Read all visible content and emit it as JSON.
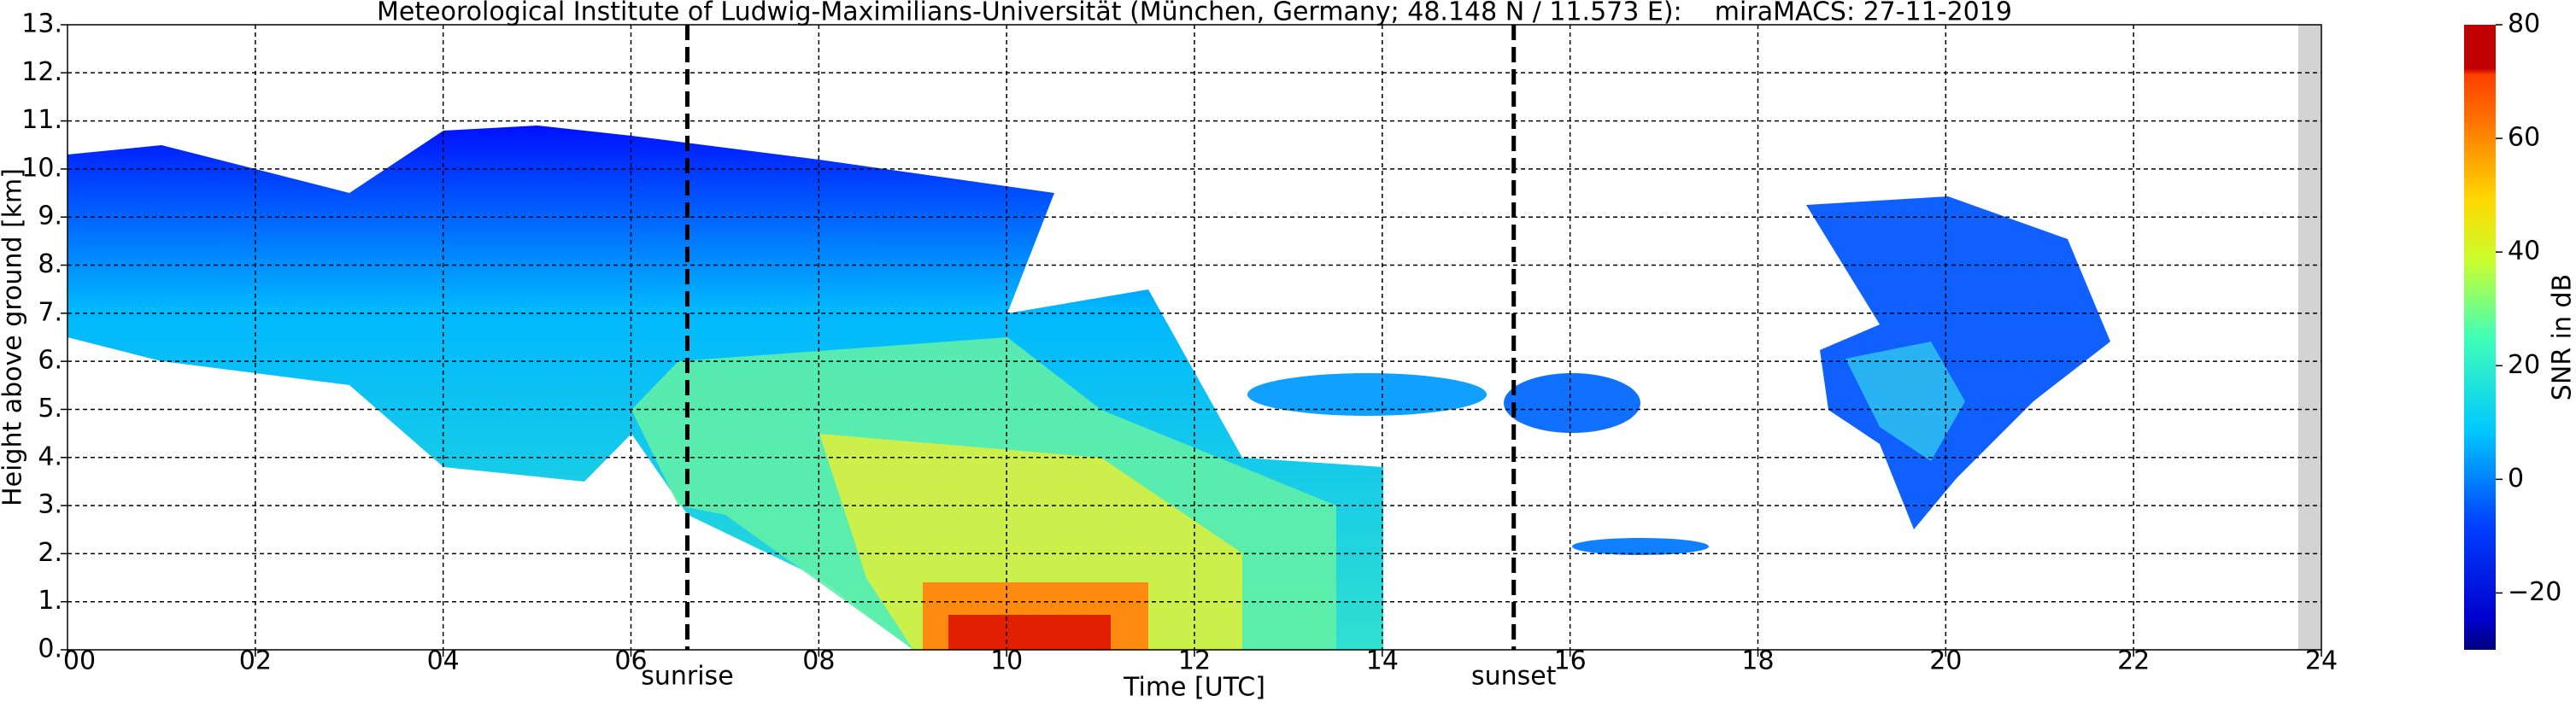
{
  "chart_data": {
    "type": "heatmap",
    "title": "Meteorological Institute of Ludwig-Maximilians-Universität (München, Germany; 48.148 N / 11.573 E):    miraMACS: 27-11-2019",
    "xlabel": "Time [UTC]",
    "ylabel": "Height above ground [km]",
    "xlim": [
      0,
      24
    ],
    "xticks": [
      {
        "value": 0,
        "label": "00"
      },
      {
        "value": 2,
        "label": "02"
      },
      {
        "value": 4,
        "label": "04"
      },
      {
        "value": 6,
        "label": "06"
      },
      {
        "value": 8,
        "label": "08"
      },
      {
        "value": 10,
        "label": "10"
      },
      {
        "value": 12,
        "label": "12"
      },
      {
        "value": 14,
        "label": "14"
      },
      {
        "value": 16,
        "label": "16"
      },
      {
        "value": 18,
        "label": "18"
      },
      {
        "value": 20,
        "label": "20"
      },
      {
        "value": 22,
        "label": "22"
      },
      {
        "value": 24,
        "label": "24"
      }
    ],
    "ylim": [
      0,
      13
    ],
    "yticks": [
      {
        "value": 0,
        "label": "0."
      },
      {
        "value": 1,
        "label": "1."
      },
      {
        "value": 2,
        "label": "2."
      },
      {
        "value": 3,
        "label": "3."
      },
      {
        "value": 4,
        "label": "4."
      },
      {
        "value": 5,
        "label": "5."
      },
      {
        "value": 6,
        "label": "6."
      },
      {
        "value": 7,
        "label": "7."
      },
      {
        "value": 8,
        "label": "8."
      },
      {
        "value": 9,
        "label": "9."
      },
      {
        "value": 10,
        "label": "10."
      },
      {
        "value": 11,
        "label": "11."
      },
      {
        "value": 12,
        "label": "12."
      },
      {
        "value": 13,
        "label": "13."
      }
    ],
    "grid": true,
    "annotations": [
      {
        "text": "sunrise",
        "x": 6.6
      },
      {
        "text": "sunset",
        "x": 15.4
      }
    ],
    "colorbar": {
      "label": "SNR in dB",
      "lim": [
        -30,
        80
      ],
      "ticks": [
        {
          "value": -20,
          "label": "−20"
        },
        0,
        20,
        40,
        60,
        80
      ]
    }
  }
}
